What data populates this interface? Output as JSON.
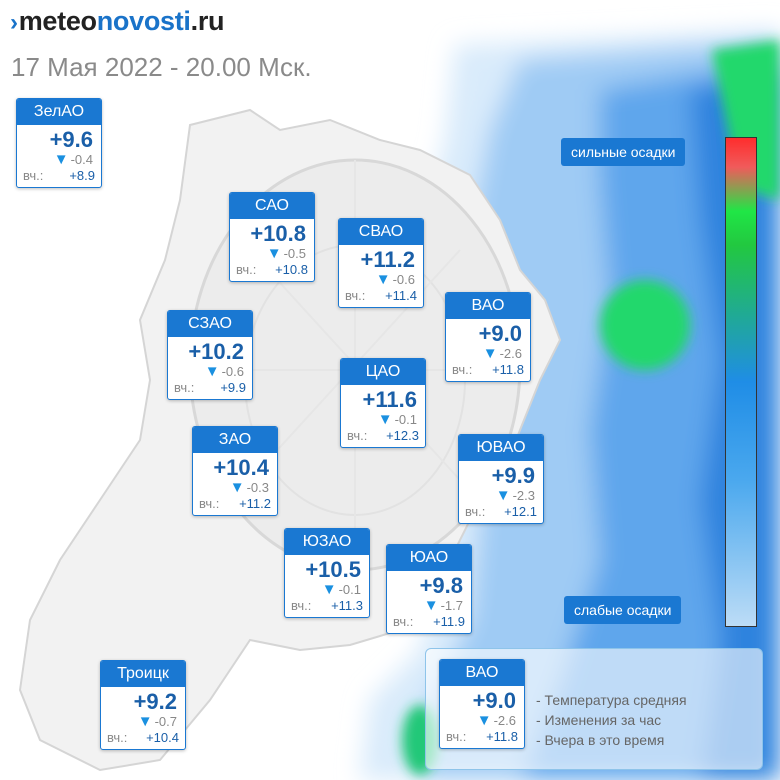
{
  "site": {
    "logo_prefix": "meteo",
    "logo_main": "novosti",
    "logo_suffix": ".ru"
  },
  "date_text": "17 Мая 2022 - 20.00 Мск.",
  "yesterday_label": "вч.:",
  "districts": [
    {
      "id": "zelao",
      "name": "ЗелАО",
      "temp": "+9.6",
      "change": "-0.4",
      "yesterday": "+8.9"
    },
    {
      "id": "sao",
      "name": "САО",
      "temp": "+10.8",
      "change": "-0.5",
      "yesterday": "+10.8"
    },
    {
      "id": "svao",
      "name": "СВАО",
      "temp": "+11.2",
      "change": "-0.6",
      "yesterday": "+11.4"
    },
    {
      "id": "vao",
      "name": "ВАО",
      "temp": "+9.0",
      "change": "-2.6",
      "yesterday": "+11.8"
    },
    {
      "id": "szao",
      "name": "СЗАО",
      "temp": "+10.2",
      "change": "-0.6",
      "yesterday": "+9.9"
    },
    {
      "id": "cao",
      "name": "ЦАО",
      "temp": "+11.6",
      "change": "-0.1",
      "yesterday": "+12.3"
    },
    {
      "id": "zao",
      "name": "ЗАО",
      "temp": "+10.4",
      "change": "-0.3",
      "yesterday": "+11.2"
    },
    {
      "id": "yuvao",
      "name": "ЮВАО",
      "temp": "+9.9",
      "change": "-2.3",
      "yesterday": "+12.1"
    },
    {
      "id": "yuzao",
      "name": "ЮЗАО",
      "temp": "+10.5",
      "change": "-0.1",
      "yesterday": "+11.3"
    },
    {
      "id": "yuao",
      "name": "ЮАО",
      "temp": "+9.8",
      "change": "-1.7",
      "yesterday": "+11.9"
    },
    {
      "id": "troitsk",
      "name": "Троицк",
      "temp": "+9.2",
      "change": "-0.7",
      "yesterday": "+10.4"
    }
  ],
  "scale": {
    "top_label": "сильные осадки",
    "bottom_label": "слабые осадки"
  },
  "legend": {
    "sample": {
      "name": "ВАО",
      "temp": "+9.0",
      "change": "-2.6",
      "yesterday": "+11.8"
    },
    "lines": [
      "- Температура средняя",
      "- Изменения за час",
      "- Вчера в это время"
    ]
  },
  "colors": {
    "accent": "#1a78d2",
    "temp_text": "#1a5fa8",
    "heavy": "#ff2d2d",
    "moderate": "#20e646",
    "light": "#bcdcf6"
  }
}
